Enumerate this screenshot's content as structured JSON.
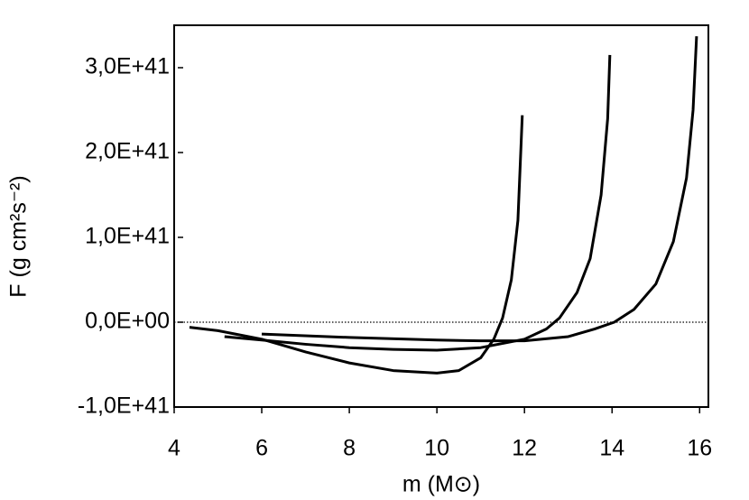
{
  "chart_data": {
    "type": "line",
    "x_label": "m (M⊙)",
    "y_label": "F (g cm²s⁻²)",
    "xlim": [
      4,
      16.2
    ],
    "ylim": [
      -1e+41,
      3.5e+41
    ],
    "xticks": [
      4,
      6,
      8,
      10,
      12,
      14,
      16
    ],
    "yticks": [
      {
        "value": -1e+41,
        "label": "-1,0E+41"
      },
      {
        "value": 0,
        "label": "0,0E+00"
      },
      {
        "value": 1e+41,
        "label": "1,0E+41"
      },
      {
        "value": 2e+41,
        "label": "2,0E+41"
      },
      {
        "value": 3e+41,
        "label": "3,0E+41"
      }
    ],
    "zero_line": true,
    "series": [
      {
        "color": "#000000",
        "x": [
          4.35,
          5,
          6,
          7,
          8,
          9,
          10,
          10.5,
          11,
          11.3,
          11.5,
          11.7,
          11.85,
          11.95
        ],
        "values": [
          -6e+39,
          -1e+40,
          -2e+40,
          -3.5e+40,
          -4.8e+40,
          -5.7e+40,
          -6e+40,
          -5.7e+40,
          -4.2e+40,
          -2e+40,
          5e+39,
          5e+40,
          1.2e+41,
          2.44e+41
        ]
      },
      {
        "color": "#000000",
        "x": [
          5.15,
          6,
          7,
          8,
          9,
          10,
          11,
          12,
          12.5,
          12.8,
          13.2,
          13.5,
          13.75,
          13.9,
          13.95
        ],
        "values": [
          -1.7e+40,
          -2.1e+40,
          -2.6e+40,
          -3e+40,
          -3.2e+40,
          -3.3e+40,
          -3e+40,
          -2e+40,
          -8e+39,
          5e+39,
          3.5e+40,
          7.5e+40,
          1.5e+41,
          2.4e+41,
          3.15e+41
        ]
      },
      {
        "color": "#000000",
        "x": [
          6,
          8,
          10,
          11,
          12,
          13,
          13.6,
          14.05,
          14.5,
          15,
          15.4,
          15.7,
          15.85,
          15.93
        ],
        "values": [
          -1.4e+40,
          -1.8e+40,
          -2.1e+40,
          -2.2e+40,
          -2.2e+40,
          -1.7e+40,
          -8e+39,
          0,
          1.5e+40,
          4.5e+40,
          9.5e+40,
          1.7e+41,
          2.5e+41,
          3.37e+41
        ]
      }
    ]
  }
}
